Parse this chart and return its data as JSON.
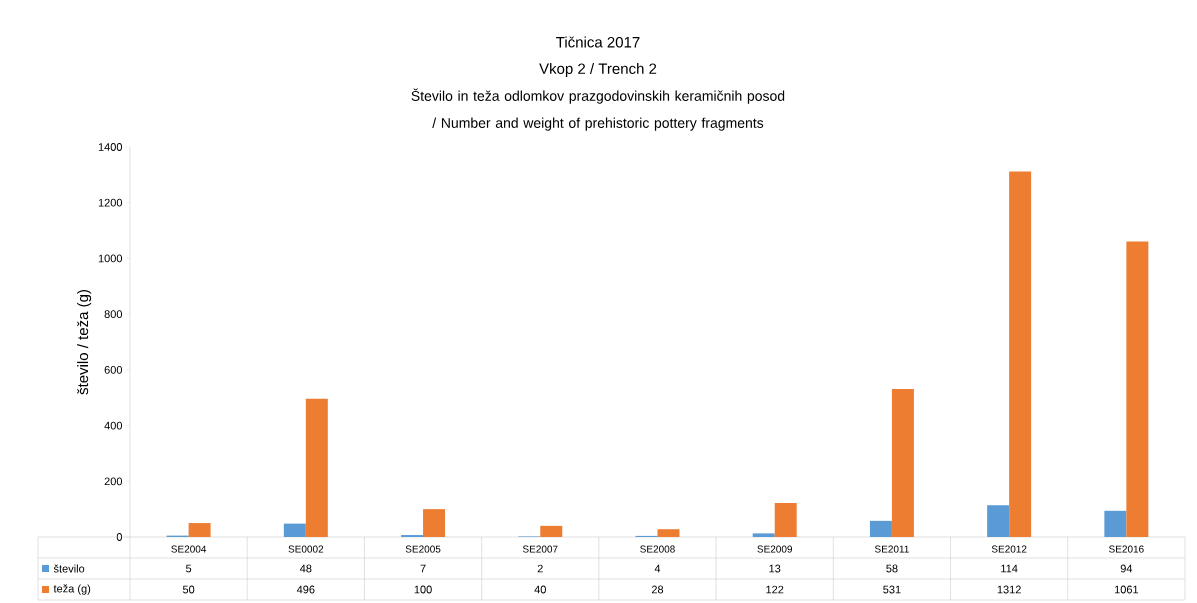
{
  "chart_data": {
    "type": "bar",
    "title": "Tičnica 2017",
    "subtitle": "Vkop 2 / Trench 2",
    "annotations": [
      "Število in teža odlomkov prazgodovinskih keramičnih posod / Number and weight of prehistoric pottery fragments"
    ],
    "ylabel": "število / teža (g)",
    "categories": [
      "SE2004",
      "SE0002",
      "SE2005",
      "SE2007",
      "SE2008",
      "SE2009",
      "SE2011",
      "SE2012",
      "SE2016"
    ],
    "series": [
      {
        "name": "število",
        "color": "#5b9bd5",
        "values": [
          5,
          48,
          7,
          2,
          4,
          13,
          58,
          114,
          94
        ]
      },
      {
        "name": "teža (g)",
        "color": "#ed7d31",
        "values": [
          50,
          496,
          100,
          40,
          28,
          122,
          531,
          1312,
          1061
        ]
      }
    ],
    "ylim": [
      0,
      1400
    ],
    "yticks": [
      0,
      200,
      400,
      600,
      800,
      1000,
      1200,
      1400
    ],
    "data_labels": true,
    "legend": "bottom left"
  }
}
